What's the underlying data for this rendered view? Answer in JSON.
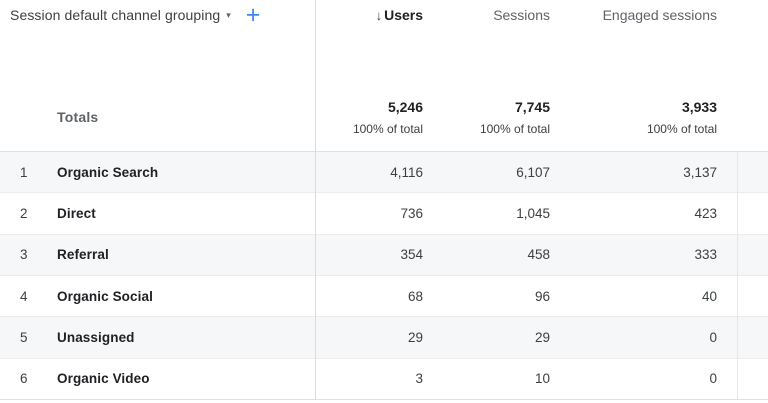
{
  "header": {
    "dimension_label": "Session default channel grouping",
    "icons": {
      "caret": "▾",
      "plus": "+",
      "sort_desc": "↓"
    },
    "plus_color": "#4285f4"
  },
  "columns": [
    {
      "label": "Users",
      "sorted": true
    },
    {
      "label": "Sessions",
      "sorted": false
    },
    {
      "label": "Engaged sessions",
      "sorted": false
    }
  ],
  "totals": {
    "label": "Totals",
    "values": [
      "5,246",
      "7,745",
      "3,933"
    ],
    "subtitles": [
      "100% of total",
      "100% of total",
      "100% of total"
    ]
  },
  "rows": [
    {
      "index": "1",
      "channel": "Organic Search",
      "users": "4,116",
      "sessions": "6,107",
      "engaged": "3,137"
    },
    {
      "index": "2",
      "channel": "Direct",
      "users": "736",
      "sessions": "1,045",
      "engaged": "423"
    },
    {
      "index": "3",
      "channel": "Referral",
      "users": "354",
      "sessions": "458",
      "engaged": "333"
    },
    {
      "index": "4",
      "channel": "Organic Social",
      "users": "68",
      "sessions": "96",
      "engaged": "40"
    },
    {
      "index": "5",
      "channel": "Unassigned",
      "users": "29",
      "sessions": "29",
      "engaged": "0"
    },
    {
      "index": "6",
      "channel": "Organic Video",
      "users": "3",
      "sessions": "10",
      "engaged": "0"
    }
  ]
}
